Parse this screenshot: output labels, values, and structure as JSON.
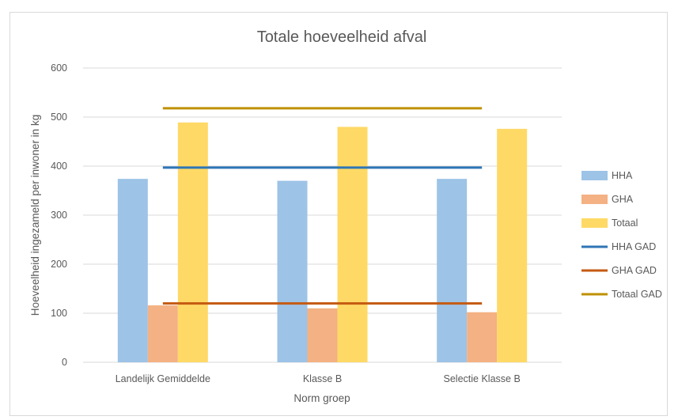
{
  "chart_data": {
    "type": "bar",
    "title": "Totale hoeveelheid afval",
    "xlabel": "Norm groep",
    "ylabel": "Hoeveelheid ingezameld per inwoner in kg",
    "categories": [
      "Landelijk Gemiddelde",
      "Klasse B",
      "Selectie Klasse B"
    ],
    "ylim": [
      0,
      600
    ],
    "yticks": [
      0,
      100,
      200,
      300,
      400,
      500,
      600
    ],
    "grid": true,
    "legend_position": "right",
    "series": [
      {
        "name": "HHA",
        "kind": "bar",
        "color": "#9dc3e6",
        "values": [
          374,
          370,
          374
        ]
      },
      {
        "name": "GHA",
        "kind": "bar",
        "color": "#f4b183",
        "values": [
          116,
          110,
          102
        ]
      },
      {
        "name": "Totaal",
        "kind": "bar",
        "color": "#ffd966",
        "values": [
          489,
          480,
          476
        ]
      },
      {
        "name": "HHA GAD",
        "kind": "line",
        "color": "#2e75b6",
        "values": [
          397,
          397,
          397
        ]
      },
      {
        "name": "GHA GAD",
        "kind": "line",
        "color": "#c55a11",
        "values": [
          120,
          120,
          120
        ]
      },
      {
        "name": "Totaal GAD",
        "kind": "line",
        "color": "#bf9000",
        "values": [
          518,
          518,
          518
        ]
      }
    ]
  }
}
